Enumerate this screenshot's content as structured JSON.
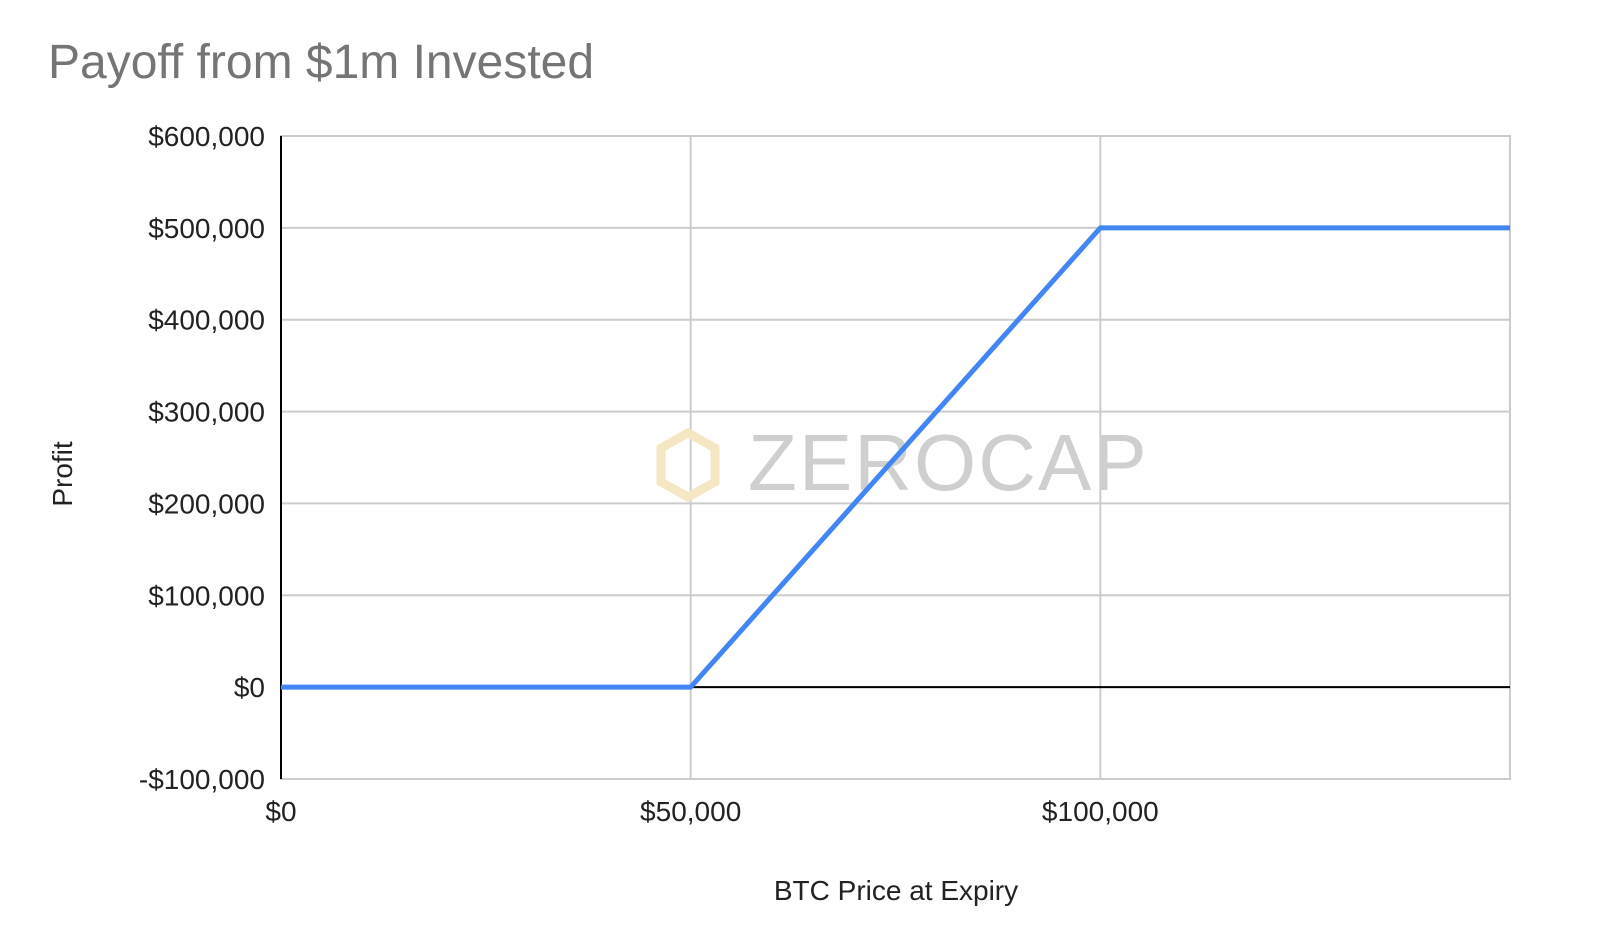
{
  "chart_data": {
    "type": "line",
    "title": "Payoff from $1m Invested",
    "xlabel": "BTC Price at Expiry",
    "ylabel": "Profit",
    "x": [
      0,
      50000,
      100000,
      150000
    ],
    "series": [
      {
        "values": [
          0,
          0,
          500000,
          500000
        ],
        "color": "#4285f4"
      }
    ],
    "xlim": [
      0,
      150000
    ],
    "ylim": [
      -100000,
      600000
    ],
    "x_ticks": [
      0,
      50000,
      100000
    ],
    "x_tick_labels": [
      "$0",
      "$50,000",
      "$100,000"
    ],
    "y_ticks": [
      -100000,
      0,
      100000,
      200000,
      300000,
      400000,
      500000,
      600000
    ],
    "y_tick_labels": [
      "-$100,000",
      "$0",
      "$100,000",
      "$200,000",
      "$300,000",
      "$400,000",
      "$500,000",
      "$600,000"
    ],
    "grid": true,
    "legend": "none"
  },
  "watermark": {
    "text": "ZEROCAP",
    "icon": "hexagon-logo-icon",
    "icon_color": "#f6e7c4"
  }
}
